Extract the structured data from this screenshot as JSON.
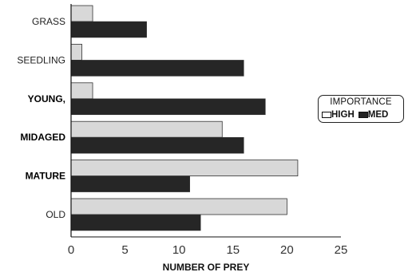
{
  "chart_data": {
    "type": "bar",
    "orientation": "horizontal",
    "categories": [
      "GRASS",
      "SEEDLING",
      "YOUNG,",
      "MIDAGED",
      "MATURE",
      "OLD"
    ],
    "bold_categories": [
      "YOUNG,",
      "MIDAGED",
      "MATURE"
    ],
    "series": [
      {
        "name": "HIGH",
        "values": [
          2,
          1,
          2,
          14,
          21,
          20
        ],
        "color": "#d8d8d8"
      },
      {
        "name": "MED",
        "values": [
          7,
          16,
          18,
          16,
          11,
          12
        ],
        "color": "#262626"
      }
    ],
    "xlabel": "NUMBER OF PREY",
    "ylabel": "",
    "xlim": [
      0,
      25
    ],
    "xticks": [
      "0",
      "5",
      "10",
      "15",
      "20",
      "25"
    ],
    "grid": false,
    "legend": {
      "title": "IMPORTANCE",
      "placement": "right",
      "entries": [
        "HIGH",
        "MED"
      ]
    }
  }
}
